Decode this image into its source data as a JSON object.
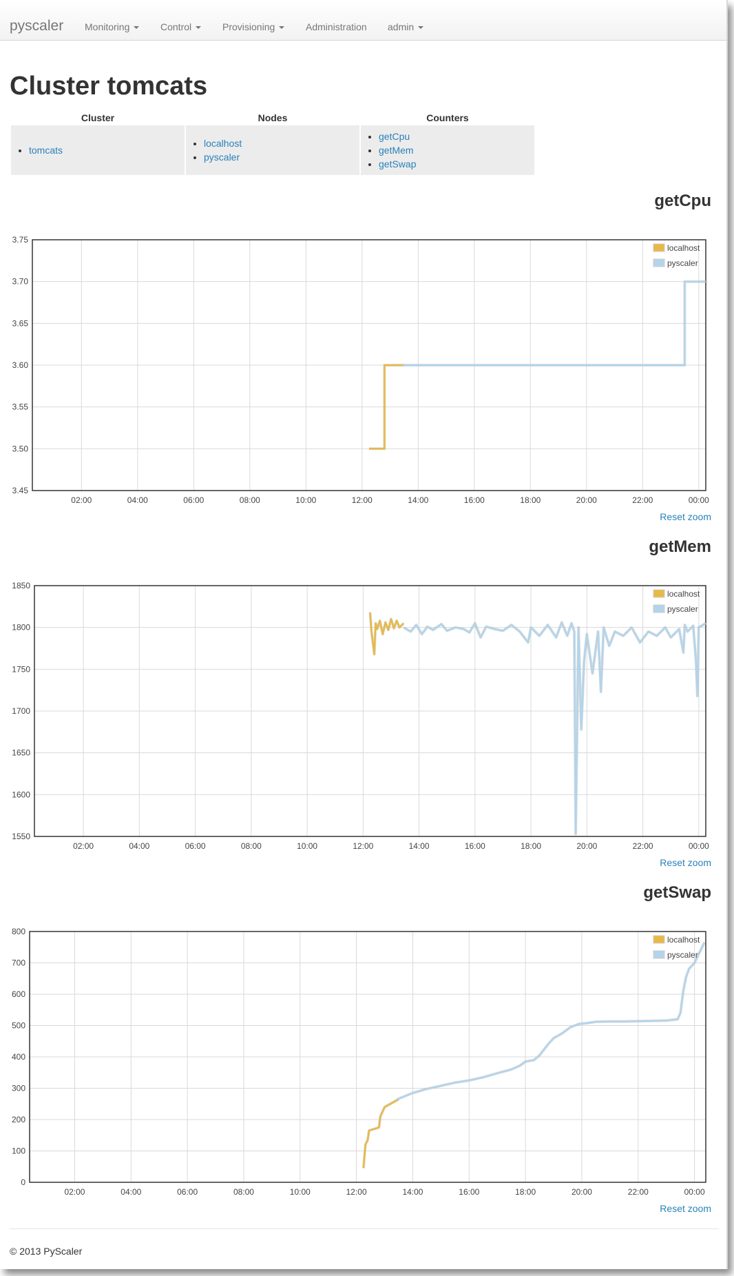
{
  "navbar": {
    "brand": "pyscaler",
    "items": [
      {
        "label": "Monitoring",
        "dropdown": true
      },
      {
        "label": "Control",
        "dropdown": true
      },
      {
        "label": "Provisioning",
        "dropdown": true
      },
      {
        "label": "Administration",
        "dropdown": false
      },
      {
        "label": "admin",
        "dropdown": true
      }
    ]
  },
  "page": {
    "title": "Cluster tomcats"
  },
  "info_table": {
    "headers": [
      "Cluster",
      "Nodes",
      "Counters"
    ],
    "cluster": [
      "tomcats"
    ],
    "nodes": [
      "localhost",
      "pyscaler"
    ],
    "counters": [
      "getCpu",
      "getMem",
      "getSwap"
    ]
  },
  "reset_zoom_label": "Reset zoom",
  "footer": "© 2013 PyScaler",
  "colors": {
    "localhost": "#e8b944",
    "pyscaler": "#b3d4ea"
  },
  "chart_data": [
    {
      "type": "line",
      "title": "getCpu",
      "xticks": [
        "02:00",
        "04:00",
        "06:00",
        "08:00",
        "10:00",
        "12:00",
        "14:00",
        "16:00",
        "18:00",
        "20:00",
        "22:00",
        "00:00"
      ],
      "yticks": [
        "3.45",
        "3.50",
        "3.55",
        "3.60",
        "3.65",
        "3.70",
        "3.75"
      ],
      "xlim_hours": [
        0.25,
        24.25
      ],
      "ylim": [
        3.45,
        3.75
      ],
      "grid": true,
      "legend_position": "top-right",
      "series": [
        {
          "name": "localhost",
          "x_hours": [
            12.25,
            12.8,
            12.8,
            13.5
          ],
          "y": [
            3.5,
            3.5,
            3.6,
            3.6
          ]
        },
        {
          "name": "pyscaler",
          "x_hours": [
            13.45,
            23.5,
            23.5,
            24.25
          ],
          "y": [
            3.6,
            3.6,
            3.7,
            3.7
          ]
        }
      ]
    },
    {
      "type": "line",
      "title": "getMem",
      "xticks": [
        "02:00",
        "04:00",
        "06:00",
        "08:00",
        "10:00",
        "12:00",
        "14:00",
        "16:00",
        "18:00",
        "20:00",
        "22:00",
        "00:00"
      ],
      "yticks": [
        "1550",
        "1600",
        "1650",
        "1700",
        "1750",
        "1800",
        "1850"
      ],
      "xlim_hours": [
        0.25,
        24.25
      ],
      "ylim": [
        1550,
        1850
      ],
      "grid": true,
      "legend_position": "top-right",
      "series": [
        {
          "name": "localhost",
          "x_hours": [
            12.25,
            12.3,
            12.4,
            12.45,
            12.5,
            12.6,
            12.7,
            12.8,
            12.9,
            13.0,
            13.1,
            13.2,
            13.3,
            13.45
          ],
          "y": [
            1818,
            1795,
            1768,
            1805,
            1798,
            1808,
            1792,
            1806,
            1797,
            1810,
            1799,
            1808,
            1800,
            1805
          ]
        },
        {
          "name": "pyscaler",
          "x_hours": [
            13.45,
            13.7,
            13.9,
            14.1,
            14.3,
            14.5,
            14.8,
            15.0,
            15.3,
            15.6,
            15.8,
            16.0,
            16.2,
            16.4,
            16.7,
            17.0,
            17.3,
            17.6,
            17.9,
            18.0,
            18.3,
            18.6,
            18.9,
            19.1,
            19.3,
            19.45,
            19.55,
            19.6,
            19.7,
            19.8,
            19.9,
            20.0,
            20.2,
            20.4,
            20.5,
            20.6,
            20.8,
            21.0,
            21.3,
            21.6,
            21.9,
            22.2,
            22.5,
            22.8,
            23.0,
            23.3,
            23.45,
            23.5,
            23.6,
            23.8,
            23.9,
            23.95,
            24.0,
            24.25
          ],
          "y": [
            1800,
            1795,
            1803,
            1792,
            1801,
            1797,
            1804,
            1796,
            1800,
            1798,
            1794,
            1805,
            1788,
            1801,
            1798,
            1796,
            1803,
            1795,
            1782,
            1800,
            1790,
            1803,
            1788,
            1806,
            1790,
            1805,
            1795,
            1553,
            1800,
            1678,
            1760,
            1792,
            1745,
            1795,
            1723,
            1800,
            1778,
            1795,
            1790,
            1800,
            1782,
            1795,
            1790,
            1800,
            1788,
            1798,
            1770,
            1803,
            1795,
            1802,
            1760,
            1718,
            1800,
            1805
          ]
        }
      ]
    },
    {
      "type": "line",
      "title": "getSwap",
      "xticks": [
        "02:00",
        "04:00",
        "06:00",
        "08:00",
        "10:00",
        "12:00",
        "14:00",
        "16:00",
        "18:00",
        "20:00",
        "22:00",
        "00:00"
      ],
      "yticks": [
        "0",
        "100",
        "200",
        "300",
        "400",
        "500",
        "600",
        "700",
        "800"
      ],
      "xlim_hours": [
        0.4,
        24.4
      ],
      "ylim": [
        0,
        800
      ],
      "grid": true,
      "legend_position": "top-right",
      "series": [
        {
          "name": "localhost",
          "x_hours": [
            12.25,
            12.32,
            12.4,
            12.45,
            12.8,
            12.85,
            13.0,
            13.3,
            13.5
          ],
          "y": [
            45,
            120,
            135,
            165,
            175,
            210,
            240,
            255,
            265
          ]
        },
        {
          "name": "pyscaler",
          "x_hours": [
            13.45,
            14.0,
            14.5,
            15.0,
            15.5,
            16.0,
            16.5,
            17.0,
            17.5,
            17.8,
            18.0,
            18.3,
            18.5,
            18.8,
            19.0,
            19.3,
            19.6,
            19.9,
            20.2,
            20.5,
            21.0,
            21.5,
            22.0,
            22.5,
            23.0,
            23.4,
            23.5,
            23.6,
            23.7,
            23.8,
            23.9,
            24.0,
            24.35
          ],
          "y": [
            265,
            285,
            298,
            308,
            318,
            325,
            335,
            348,
            360,
            372,
            385,
            390,
            405,
            440,
            460,
            475,
            495,
            505,
            508,
            512,
            513,
            513,
            514,
            515,
            516,
            520,
            540,
            610,
            655,
            680,
            690,
            700,
            765
          ]
        }
      ]
    }
  ]
}
